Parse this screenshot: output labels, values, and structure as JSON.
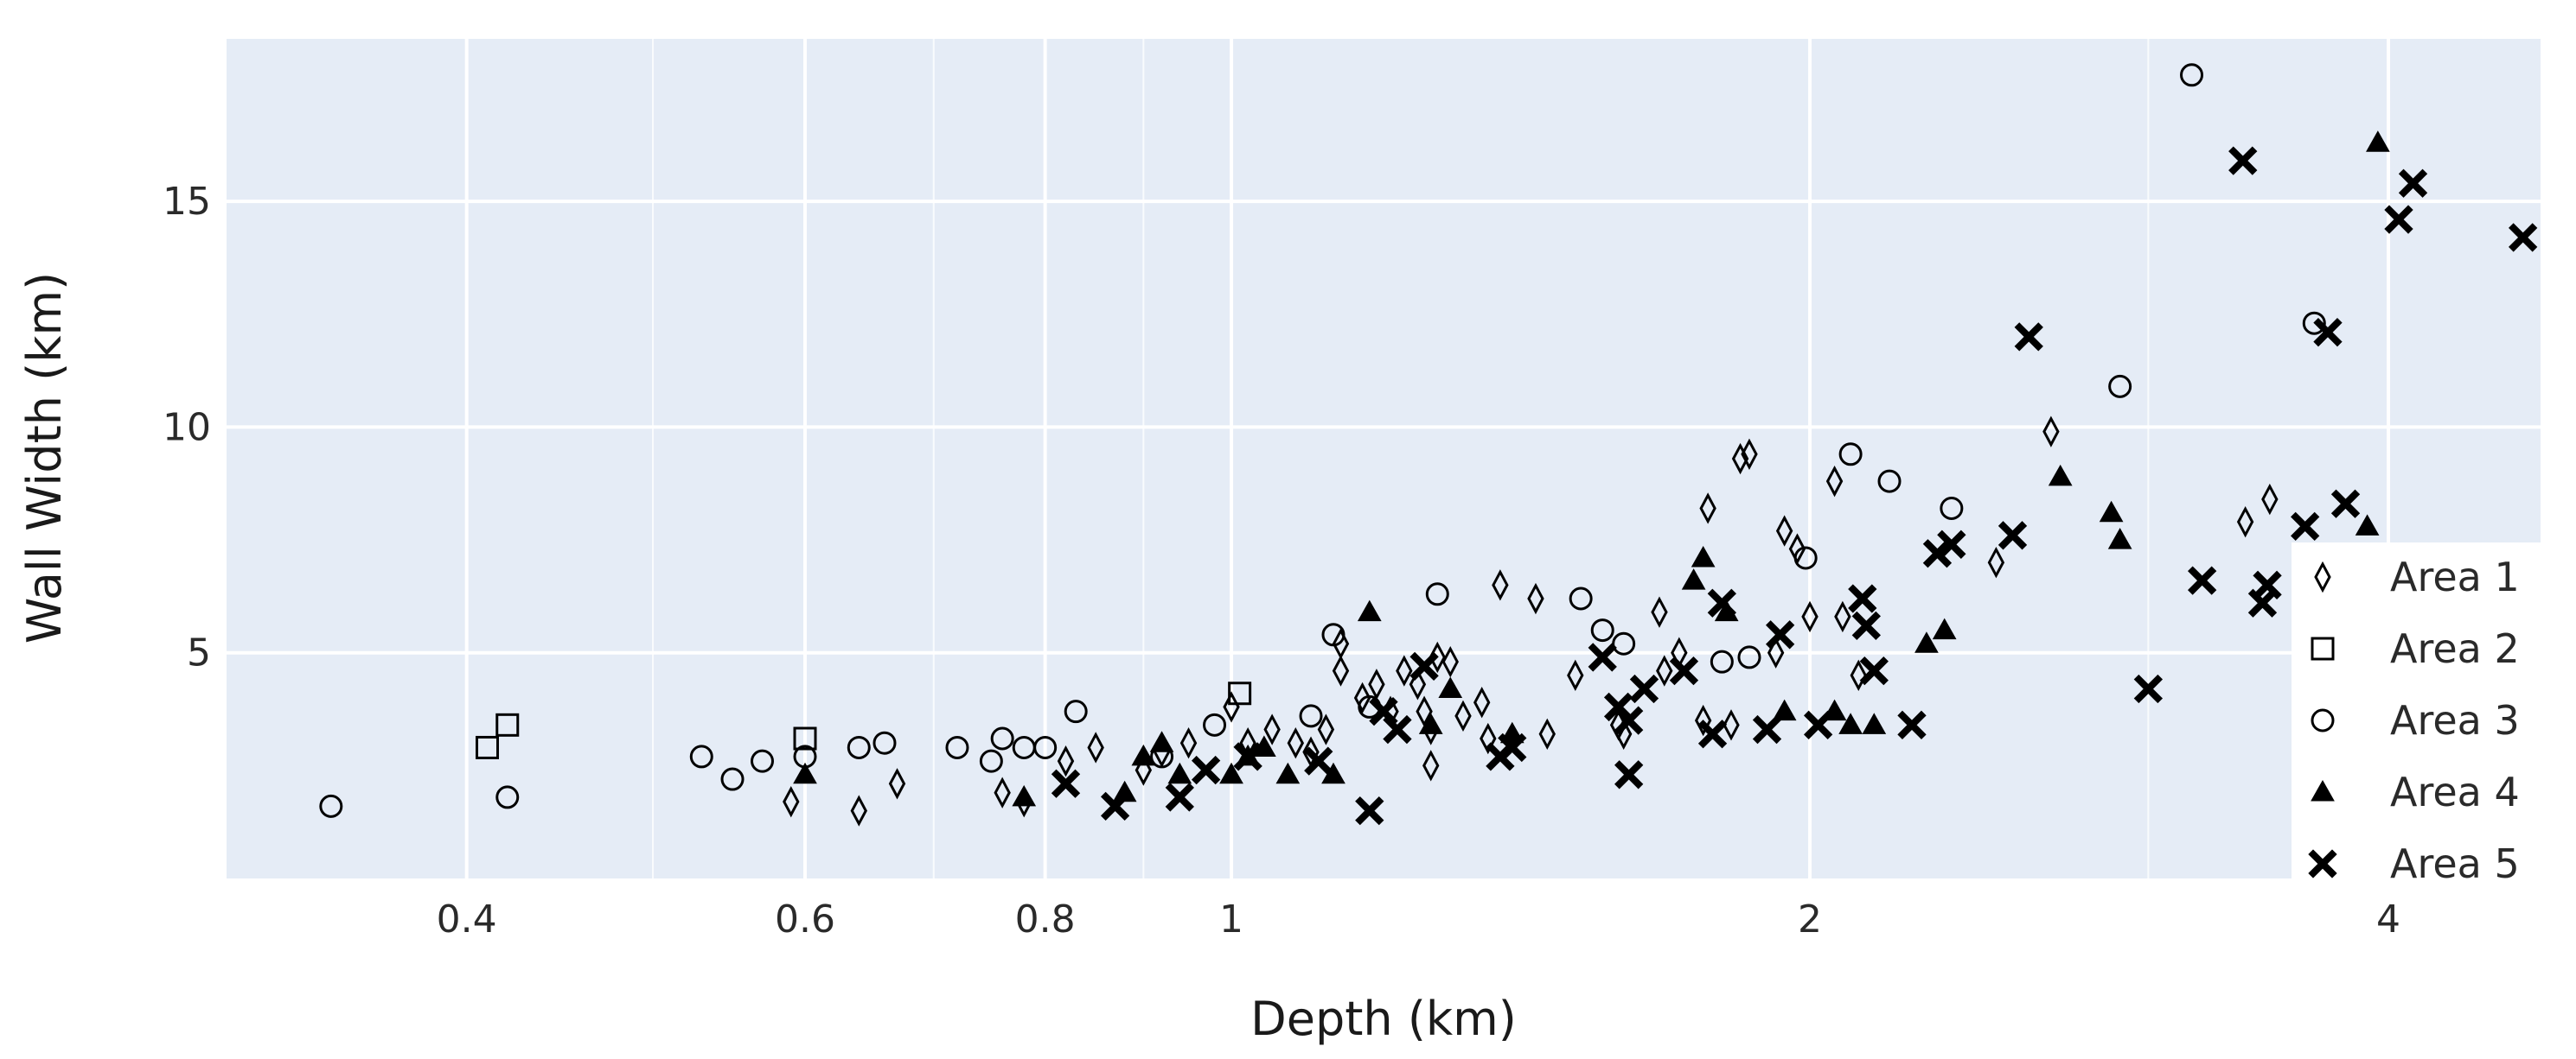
{
  "chart_data": {
    "type": "scatter",
    "title": "",
    "xlabel": "Depth (km)",
    "ylabel": "Wall Width (km)",
    "x_scale": "log",
    "xlim": [
      0.3,
      4.8
    ],
    "ylim": [
      0,
      18.6
    ],
    "x_ticks": [
      {
        "value": 0.4,
        "label": "0.4"
      },
      {
        "value": 0.6,
        "label": "0.6"
      },
      {
        "value": 0.8,
        "label": "0.8"
      },
      {
        "value": 1,
        "label": "1"
      },
      {
        "value": 2,
        "label": "2"
      },
      {
        "value": 4,
        "label": "4"
      }
    ],
    "x_minor_grid": [
      0.5,
      0.7,
      0.9,
      3
    ],
    "y_ticks": [
      {
        "value": 5,
        "label": "5"
      },
      {
        "value": 10,
        "label": "10"
      },
      {
        "value": 15,
        "label": "15"
      }
    ],
    "grid": true,
    "background_color": "#e5ecf6",
    "grid_color": "#ffffff",
    "marker_color": "#000000",
    "legend_position": "bottom-right",
    "series": [
      {
        "name": "Area 1",
        "marker": "diamond-open",
        "points": [
          [
            0.59,
            1.7
          ],
          [
            0.64,
            1.5
          ],
          [
            0.67,
            2.1
          ],
          [
            0.76,
            1.9
          ],
          [
            0.78,
            1.7
          ],
          [
            0.82,
            2.6
          ],
          [
            0.85,
            2.9
          ],
          [
            0.9,
            2.4
          ],
          [
            0.92,
            2.8
          ],
          [
            0.95,
            3.0
          ],
          [
            1.0,
            3.8
          ],
          [
            1.02,
            3.0
          ],
          [
            1.05,
            3.3
          ],
          [
            1.08,
            3.0
          ],
          [
            1.1,
            2.8
          ],
          [
            1.12,
            3.3
          ],
          [
            1.14,
            4.6
          ],
          [
            1.14,
            5.2
          ],
          [
            1.17,
            4.0
          ],
          [
            1.19,
            4.3
          ],
          [
            1.21,
            3.7
          ],
          [
            1.23,
            4.6
          ],
          [
            1.25,
            4.3
          ],
          [
            1.26,
            3.7
          ],
          [
            1.27,
            3.3
          ],
          [
            1.27,
            2.5
          ],
          [
            1.28,
            4.9
          ],
          [
            1.3,
            4.8
          ],
          [
            1.32,
            3.6
          ],
          [
            1.35,
            3.9
          ],
          [
            1.36,
            3.1
          ],
          [
            1.38,
            6.5
          ],
          [
            1.44,
            6.2
          ],
          [
            1.46,
            3.2
          ],
          [
            1.51,
            4.5
          ],
          [
            1.59,
            3.4
          ],
          [
            1.6,
            3.2
          ],
          [
            1.67,
            5.9
          ],
          [
            1.68,
            4.6
          ],
          [
            1.71,
            5.0
          ],
          [
            1.76,
            3.5
          ],
          [
            1.77,
            8.2
          ],
          [
            1.82,
            3.4
          ],
          [
            1.84,
            9.3
          ],
          [
            1.86,
            9.4
          ],
          [
            1.92,
            5.0
          ],
          [
            1.94,
            7.7
          ],
          [
            1.97,
            7.3
          ],
          [
            2.0,
            5.8
          ],
          [
            2.06,
            8.8
          ],
          [
            2.08,
            5.8
          ],
          [
            2.12,
            4.5
          ],
          [
            2.5,
            7.0
          ],
          [
            2.67,
            9.9
          ],
          [
            3.37,
            7.9
          ],
          [
            3.47,
            8.4
          ]
        ]
      },
      {
        "name": "Area 2",
        "marker": "square-open",
        "points": [
          [
            0.41,
            2.9
          ],
          [
            0.42,
            3.4
          ],
          [
            0.6,
            3.1
          ],
          [
            1.01,
            4.1
          ]
        ]
      },
      {
        "name": "Area 3",
        "marker": "circle-open",
        "points": [
          [
            0.34,
            1.6
          ],
          [
            0.42,
            1.8
          ],
          [
            0.53,
            2.7
          ],
          [
            0.55,
            2.2
          ],
          [
            0.57,
            2.6
          ],
          [
            0.6,
            2.7
          ],
          [
            0.64,
            2.9
          ],
          [
            0.66,
            3.0
          ],
          [
            0.72,
            2.9
          ],
          [
            0.75,
            2.6
          ],
          [
            0.76,
            3.1
          ],
          [
            0.78,
            2.9
          ],
          [
            0.8,
            2.9
          ],
          [
            0.83,
            3.7
          ],
          [
            0.92,
            2.7
          ],
          [
            0.98,
            3.4
          ],
          [
            1.1,
            3.6
          ],
          [
            1.13,
            5.4
          ],
          [
            1.18,
            3.8
          ],
          [
            1.28,
            6.3
          ],
          [
            1.52,
            6.2
          ],
          [
            1.56,
            5.5
          ],
          [
            1.6,
            5.2
          ],
          [
            1.8,
            4.8
          ],
          [
            1.86,
            4.9
          ],
          [
            1.99,
            7.1
          ],
          [
            2.1,
            9.4
          ],
          [
            2.2,
            8.8
          ],
          [
            2.37,
            8.2
          ],
          [
            2.9,
            10.9
          ],
          [
            3.16,
            17.8
          ],
          [
            3.66,
            12.3
          ]
        ]
      },
      {
        "name": "Area 4",
        "marker": "triangle-up",
        "points": [
          [
            0.6,
            2.3
          ],
          [
            0.78,
            1.8
          ],
          [
            0.88,
            1.9
          ],
          [
            0.9,
            2.7
          ],
          [
            0.92,
            3.0
          ],
          [
            0.94,
            2.3
          ],
          [
            1.0,
            2.3
          ],
          [
            1.02,
            2.7
          ],
          [
            1.04,
            2.9
          ],
          [
            1.07,
            2.3
          ],
          [
            1.13,
            2.3
          ],
          [
            1.18,
            5.9
          ],
          [
            1.27,
            3.4
          ],
          [
            1.3,
            4.2
          ],
          [
            1.4,
            3.2
          ],
          [
            1.74,
            6.6
          ],
          [
            1.76,
            7.1
          ],
          [
            1.81,
            5.9
          ],
          [
            1.94,
            3.7
          ],
          [
            2.06,
            3.7
          ],
          [
            2.1,
            3.4
          ],
          [
            2.16,
            3.4
          ],
          [
            2.3,
            5.2
          ],
          [
            2.35,
            5.5
          ],
          [
            2.7,
            8.9
          ],
          [
            2.87,
            8.1
          ],
          [
            2.9,
            7.5
          ],
          [
            3.9,
            7.8
          ],
          [
            3.95,
            16.3
          ]
        ]
      },
      {
        "name": "Area 5",
        "marker": "x-thin",
        "points": [
          [
            0.82,
            2.1
          ],
          [
            0.87,
            1.6
          ],
          [
            0.94,
            1.8
          ],
          [
            0.97,
            2.4
          ],
          [
            1.02,
            2.7
          ],
          [
            1.11,
            2.6
          ],
          [
            1.18,
            1.5
          ],
          [
            1.2,
            3.7
          ],
          [
            1.22,
            3.3
          ],
          [
            1.26,
            4.7
          ],
          [
            1.38,
            2.7
          ],
          [
            1.4,
            2.9
          ],
          [
            1.56,
            4.9
          ],
          [
            1.59,
            3.8
          ],
          [
            1.61,
            3.5
          ],
          [
            1.61,
            2.3
          ],
          [
            1.64,
            4.2
          ],
          [
            1.72,
            4.6
          ],
          [
            1.78,
            3.2
          ],
          [
            1.8,
            6.1
          ],
          [
            1.9,
            3.3
          ],
          [
            1.93,
            5.4
          ],
          [
            2.02,
            3.4
          ],
          [
            2.13,
            6.2
          ],
          [
            2.14,
            5.6
          ],
          [
            2.16,
            4.6
          ],
          [
            2.26,
            3.4
          ],
          [
            2.33,
            7.2
          ],
          [
            2.37,
            7.4
          ],
          [
            2.55,
            7.6
          ],
          [
            2.6,
            12.0
          ],
          [
            3.0,
            4.2
          ],
          [
            3.2,
            6.6
          ],
          [
            3.36,
            15.9
          ],
          [
            3.44,
            6.1
          ],
          [
            3.46,
            6.5
          ],
          [
            3.62,
            7.8
          ],
          [
            3.72,
            12.1
          ],
          [
            3.8,
            8.3
          ],
          [
            4.05,
            14.6
          ],
          [
            4.12,
            15.4
          ],
          [
            4.7,
            14.2
          ]
        ]
      }
    ]
  }
}
